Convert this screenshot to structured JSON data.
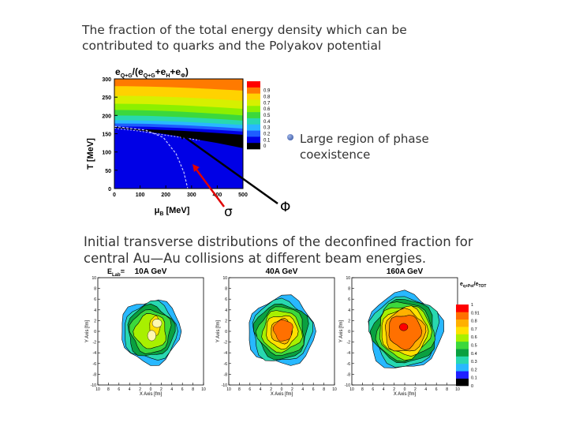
{
  "slide": {
    "title_top": "The fraction of the total energy density which can be contributed to quarks and the Polyakov potential",
    "note": "Large region of phase coexistence",
    "sigma_label": "σ",
    "phi_label": "Φ",
    "title_bottom": "Initial transverse distributions of the deconfined fraction for central Au—Au collisions at different beam energies."
  },
  "chart_data": [
    {
      "type": "heatmap",
      "title_parts": [
        "e",
        "Q+G",
        "/(e",
        "Q+G",
        "+e",
        "H",
        "+e",
        "Φ",
        ")"
      ],
      "xlabel_parts": [
        "μ",
        "B",
        " [MeV]"
      ],
      "ylabel": "T [MeV]",
      "xlim": [
        0,
        500
      ],
      "ylim": [
        0,
        300
      ],
      "xticks": [
        "0",
        "100",
        "200",
        "300",
        "400",
        "500"
      ],
      "yticks": [
        "0",
        "50",
        "100",
        "150",
        "200",
        "250",
        "300"
      ],
      "colorbar_ticks": [
        "0.9",
        "0.8",
        "0.7",
        "0.6",
        "0.5",
        "0.4",
        "0.3",
        "0.2",
        "0.1",
        "0"
      ],
      "colors": [
        "#ff0000",
        "#ff7a00",
        "#ffd200",
        "#d6f000",
        "#8cf000",
        "#3cd83c",
        "#28d8b0",
        "#28b8ff",
        "#1e5cff",
        "#0000e6",
        "#000000"
      ],
      "contour_levels": [
        {
          "level": 0.9,
          "T_at_mu0": 280,
          "T_at_mu500": 268
        },
        {
          "level": 0.8,
          "T_at_mu0": 254,
          "T_at_mu500": 240
        },
        {
          "level": 0.7,
          "T_at_mu0": 232,
          "T_at_mu500": 218
        },
        {
          "level": 0.6,
          "T_at_mu0": 215,
          "T_at_mu500": 200
        },
        {
          "level": 0.5,
          "T_at_mu0": 200,
          "T_at_mu500": 186
        },
        {
          "level": 0.4,
          "T_at_mu0": 187,
          "T_at_mu500": 174
        },
        {
          "level": 0.3,
          "T_at_mu0": 178,
          "T_at_mu500": 164
        },
        {
          "level": 0.2,
          "T_at_mu0": 170,
          "T_at_mu500": 156
        },
        {
          "level": 0.1,
          "T_at_mu0": 163,
          "T_at_mu500": 147
        }
      ],
      "coexistence_line": [
        [
          0,
          168
        ],
        [
          100,
          160
        ],
        [
          200,
          150
        ],
        [
          300,
          138
        ],
        [
          400,
          126
        ],
        [
          500,
          112
        ]
      ],
      "crossover_curve_sigma": [
        [
          0,
          170
        ],
        [
          120,
          160
        ],
        [
          190,
          140
        ],
        [
          240,
          95
        ],
        [
          270,
          45
        ],
        [
          285,
          0
        ]
      ],
      "chiral_curve": [
        [
          0,
          165
        ],
        [
          100,
          157
        ],
        [
          180,
          148
        ],
        [
          260,
          140
        ],
        [
          330,
          132
        ]
      ],
      "sigma_arrow_target": [
        250,
        70
      ],
      "phi_arrow_target": [
        270,
        150
      ]
    },
    {
      "type": "heatmap",
      "panel_label": "10A GeV",
      "corner_label_parts": [
        "E",
        "Lab",
        "="
      ],
      "xlabel": "X Axis [fm]",
      "ylabel": "Y Axis [fm]",
      "xlim": [
        -10,
        10
      ],
      "ylim": [
        -10,
        10
      ],
      "xticks": [
        "10",
        "8",
        "6",
        "4",
        "2",
        "0",
        "2",
        "4",
        "6",
        "8",
        "10"
      ],
      "yticks": [
        "10",
        "8",
        "6",
        "4",
        "2",
        "0",
        "-2",
        "-4",
        "-6",
        "-8",
        "-10"
      ],
      "max_fraction": 0.7
    },
    {
      "type": "heatmap",
      "panel_label": "40A GeV",
      "xlabel": "X Axis [fm]",
      "ylabel": "Y Axis [fm]",
      "xlim": [
        -10,
        10
      ],
      "ylim": [
        -10,
        10
      ],
      "xticks": [
        "10",
        "8",
        "6",
        "4",
        "2",
        "0",
        "2",
        "4",
        "6",
        "8",
        "10"
      ],
      "yticks": [
        "10",
        "8",
        "6",
        "4",
        "2",
        "0",
        "-2",
        "-4",
        "-6",
        "-8",
        "-10"
      ],
      "max_fraction": 0.8
    },
    {
      "type": "heatmap",
      "panel_label": "160A GeV",
      "xlabel": "X Axis [fm]",
      "ylabel": "Y Axis [fm]",
      "xlim": [
        -10,
        10
      ],
      "ylim": [
        -10,
        10
      ],
      "xticks": [
        "10",
        "8",
        "6",
        "4",
        "2",
        "0",
        "2",
        "4",
        "6",
        "8",
        "10"
      ],
      "yticks": [
        "10",
        "8",
        "6",
        "4",
        "2",
        "0",
        "-2",
        "-4",
        "-6",
        "-8",
        "-10"
      ],
      "max_fraction": 1.0,
      "legend_title_parts": [
        "e",
        "q+Pol",
        "/e",
        "TOT"
      ],
      "colorbar_ticks": [
        "1",
        "0.91",
        "0.8",
        "0.7",
        "0.6",
        "0.5",
        "0.4",
        "0.3",
        "0.2",
        "0.1",
        "0"
      ],
      "colors": [
        "#000000",
        "#2020ff",
        "#28b8ff",
        "#28d8b0",
        "#0aa040",
        "#3cd83c",
        "#a8f000",
        "#ffe000",
        "#ffb000",
        "#ff7000",
        "#ff0000"
      ]
    }
  ]
}
